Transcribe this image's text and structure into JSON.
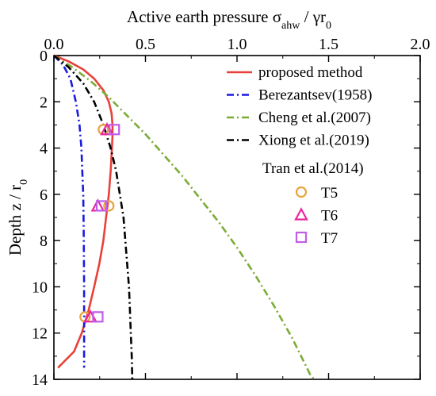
{
  "chart_data": {
    "type": "line",
    "xlabel": "Active earth pressure σ_ahw / γr_0",
    "ylabel": "Depth z / r_0",
    "xlim": [
      0,
      2.0
    ],
    "ylim": [
      14,
      0
    ],
    "x_axis_position": "top",
    "y_axis_inverted": true,
    "grid": false,
    "legend_position": "top-right",
    "x_ticks": [
      "0.0",
      "0.5",
      "1.0",
      "1.5",
      "2.0"
    ],
    "y_ticks": [
      "0",
      "2",
      "4",
      "6",
      "8",
      "10",
      "12",
      "14"
    ],
    "series": [
      {
        "name": "proposed method",
        "style": "solid",
        "color": "#e8413a",
        "points": [
          [
            0,
            0
          ],
          [
            0.08,
            0.25
          ],
          [
            0.16,
            0.6
          ],
          [
            0.22,
            1.0
          ],
          [
            0.27,
            1.5
          ],
          [
            0.3,
            2.0
          ],
          [
            0.315,
            2.5
          ],
          [
            0.32,
            3.0
          ],
          [
            0.32,
            3.5
          ],
          [
            0.317,
            4.0
          ],
          [
            0.31,
            5.0
          ],
          [
            0.3,
            6.0
          ],
          [
            0.285,
            7.0
          ],
          [
            0.27,
            8.0
          ],
          [
            0.248,
            9.0
          ],
          [
            0.22,
            10.0
          ],
          [
            0.19,
            11.0
          ],
          [
            0.152,
            12.0
          ],
          [
            0.11,
            12.8
          ],
          [
            0.022,
            13.5
          ]
        ]
      },
      {
        "name": "Berezantsev(1958)",
        "style": "dash-dot",
        "color": "#1a1adf",
        "points": [
          [
            0,
            0
          ],
          [
            0.05,
            0.4
          ],
          [
            0.09,
            1.0
          ],
          [
            0.12,
            2.0
          ],
          [
            0.14,
            3.0
          ],
          [
            0.15,
            4.0
          ],
          [
            0.155,
            5.0
          ],
          [
            0.16,
            6.0
          ],
          [
            0.162,
            7.0
          ],
          [
            0.163,
            8.0
          ],
          [
            0.164,
            9.0
          ],
          [
            0.165,
            10.0
          ],
          [
            0.165,
            11.0
          ],
          [
            0.165,
            12.0
          ],
          [
            0.165,
            13.0
          ],
          [
            0.165,
            13.5
          ]
        ]
      },
      {
        "name": "Cheng et al.(2007)",
        "style": "dash-dot",
        "color": "#7cab35",
        "points": [
          [
            0,
            0
          ],
          [
            0.1,
            0.5
          ],
          [
            0.2,
            1.1
          ],
          [
            0.3,
            1.8
          ],
          [
            0.4,
            2.6
          ],
          [
            0.5,
            3.4
          ],
          [
            0.6,
            4.3
          ],
          [
            0.7,
            5.2
          ],
          [
            0.8,
            6.2
          ],
          [
            0.9,
            7.2
          ],
          [
            1.0,
            8.3
          ],
          [
            1.1,
            9.5
          ],
          [
            1.2,
            10.8
          ],
          [
            1.3,
            12.2
          ],
          [
            1.4,
            13.8
          ],
          [
            1.42,
            14.0
          ]
        ]
      },
      {
        "name": "Xiong et al.(2019)",
        "style": "dash-dot",
        "color": "#000000",
        "points": [
          [
            0,
            0
          ],
          [
            0.08,
            0.5
          ],
          [
            0.16,
            1.2
          ],
          [
            0.22,
            2.0
          ],
          [
            0.27,
            3.0
          ],
          [
            0.31,
            4.0
          ],
          [
            0.34,
            5.0
          ],
          [
            0.36,
            6.0
          ],
          [
            0.38,
            7.0
          ],
          [
            0.39,
            8.0
          ],
          [
            0.4,
            9.0
          ],
          [
            0.41,
            10.0
          ],
          [
            0.415,
            11.0
          ],
          [
            0.42,
            12.0
          ],
          [
            0.425,
            13.0
          ],
          [
            0.428,
            14.0
          ]
        ]
      }
    ],
    "scatter_group_title": "Tran et al.(2014)",
    "scatter": [
      {
        "name": "T5",
        "marker": "circle",
        "color": "#e8a33a",
        "points": [
          [
            0.27,
            3.2
          ],
          [
            0.3,
            6.5
          ],
          [
            0.17,
            11.3
          ]
        ]
      },
      {
        "name": "T6",
        "marker": "triangle",
        "color": "#e8289f",
        "points": [
          [
            0.29,
            3.2
          ],
          [
            0.24,
            6.5
          ],
          [
            0.2,
            11.3
          ]
        ]
      },
      {
        "name": "T7",
        "marker": "square",
        "color": "#c05ee8",
        "points": [
          [
            0.33,
            3.2
          ],
          [
            0.26,
            6.5
          ],
          [
            0.24,
            11.3
          ]
        ]
      }
    ]
  }
}
